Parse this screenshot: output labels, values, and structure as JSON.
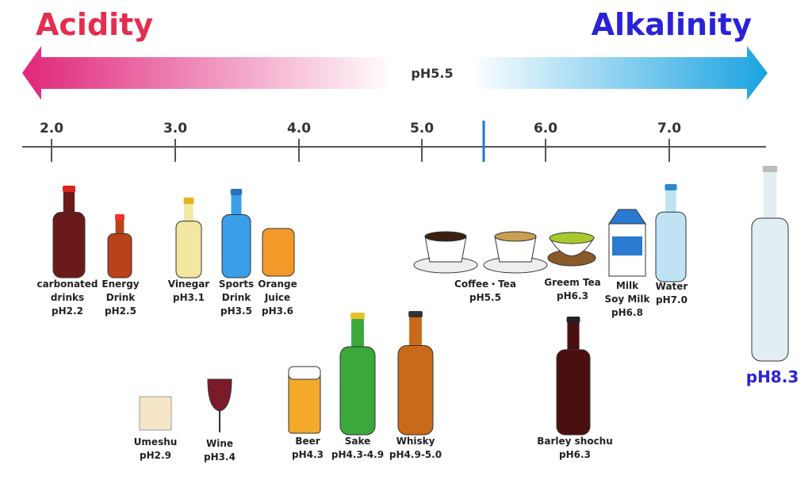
{
  "header": {
    "left": "Acidity",
    "right": "Alkalinity",
    "center": "pH5.5"
  },
  "axis": {
    "ticks": [
      "2.0",
      "3.0",
      "4.0",
      "5.0",
      "6.0",
      "7.0"
    ]
  },
  "items": [
    {
      "name": [
        "carbonated",
        "drinks"
      ],
      "ph": "pH2.2"
    },
    {
      "name": [
        "Energy",
        "Drink"
      ],
      "ph": "pH2.5"
    },
    {
      "name": [
        "Vinegar"
      ],
      "ph": "pH3.1"
    },
    {
      "name": [
        "Sports",
        "Drink"
      ],
      "ph": "pH3.5"
    },
    {
      "name": [
        "Orange",
        "Juice"
      ],
      "ph": "pH3.6"
    },
    {
      "name": [
        "Coffee・Tea"
      ],
      "ph": "pH5.5"
    },
    {
      "name": [
        "Greem Tea"
      ],
      "ph": "pH6.3"
    },
    {
      "name": [
        "Milk",
        "Soy Milk"
      ],
      "ph": "pH6.8"
    },
    {
      "name": [
        "Water"
      ],
      "ph": "pH7.0"
    },
    {
      "name": [],
      "ph": "pH8.3"
    },
    {
      "name": [
        "Umeshu"
      ],
      "ph": "pH2.9"
    },
    {
      "name": [
        "Wine"
      ],
      "ph": "pH3.4"
    },
    {
      "name": [
        "Beer"
      ],
      "ph": "pH4.3"
    },
    {
      "name": [
        "Sake"
      ],
      "ph": "pH4.3-4.9"
    },
    {
      "name": [
        "Whisky"
      ],
      "ph": "pH4.9-5.0"
    },
    {
      "name": [
        "Barley shochu"
      ],
      "ph": "pH6.3"
    }
  ]
}
